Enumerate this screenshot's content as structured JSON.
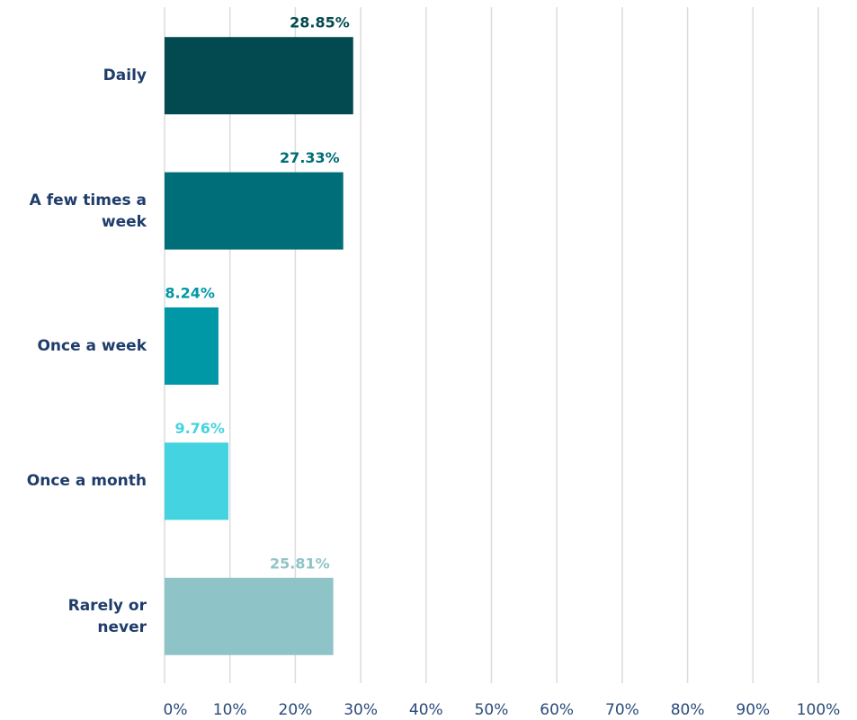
{
  "chart_data": {
    "type": "barh",
    "categories": [
      "Daily",
      "A few times a week",
      "Once a week",
      "Once a month",
      "Rarely or never"
    ],
    "values": [
      28.85,
      27.33,
      8.24,
      9.76,
      25.81
    ],
    "value_labels": [
      "28.85%",
      "27.33%",
      "8.24%",
      "9.76%",
      "25.81%"
    ],
    "colors": [
      "#034a50",
      "#006e78",
      "#0097a7",
      "#44d3e0",
      "#8ec4c8"
    ],
    "xlim": [
      0,
      100
    ],
    "xticks": [
      {
        "value": 0,
        "label": "0%"
      },
      {
        "value": 10,
        "label": "10%"
      },
      {
        "value": 20,
        "label": "20%"
      },
      {
        "value": 30,
        "label": "30%"
      },
      {
        "value": 40,
        "label": "40%"
      },
      {
        "value": 50,
        "label": "50%"
      },
      {
        "value": 60,
        "label": "60%"
      },
      {
        "value": 70,
        "label": "70%"
      },
      {
        "value": 80,
        "label": "80%"
      },
      {
        "value": 90,
        "label": "90%"
      },
      {
        "value": 100,
        "label": "100%"
      }
    ],
    "grid": true
  }
}
